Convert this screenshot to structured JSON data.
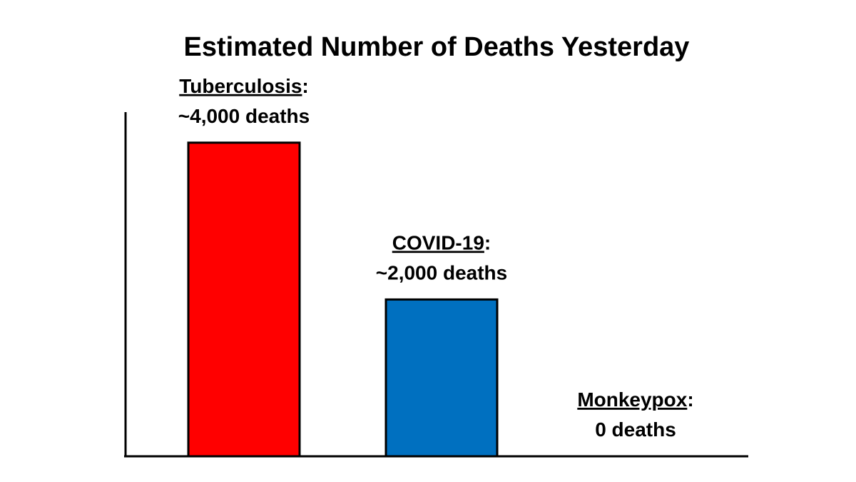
{
  "chart_data": {
    "type": "bar",
    "title": "Estimated Number of Deaths Yesterday",
    "xlabel": "",
    "ylabel": "",
    "ylim": [
      0,
      5000
    ],
    "grid": false,
    "legend": "none",
    "categories": [
      "Tuberculosis",
      "COVID-19",
      "Monkeypox"
    ],
    "values": [
      4000,
      2000,
      0
    ],
    "data_labels": [
      "~4,000 deaths",
      "~2,000 deaths",
      "0 deaths"
    ],
    "colors": [
      "#ff0000",
      "#0070c0",
      "#ffffff"
    ]
  }
}
